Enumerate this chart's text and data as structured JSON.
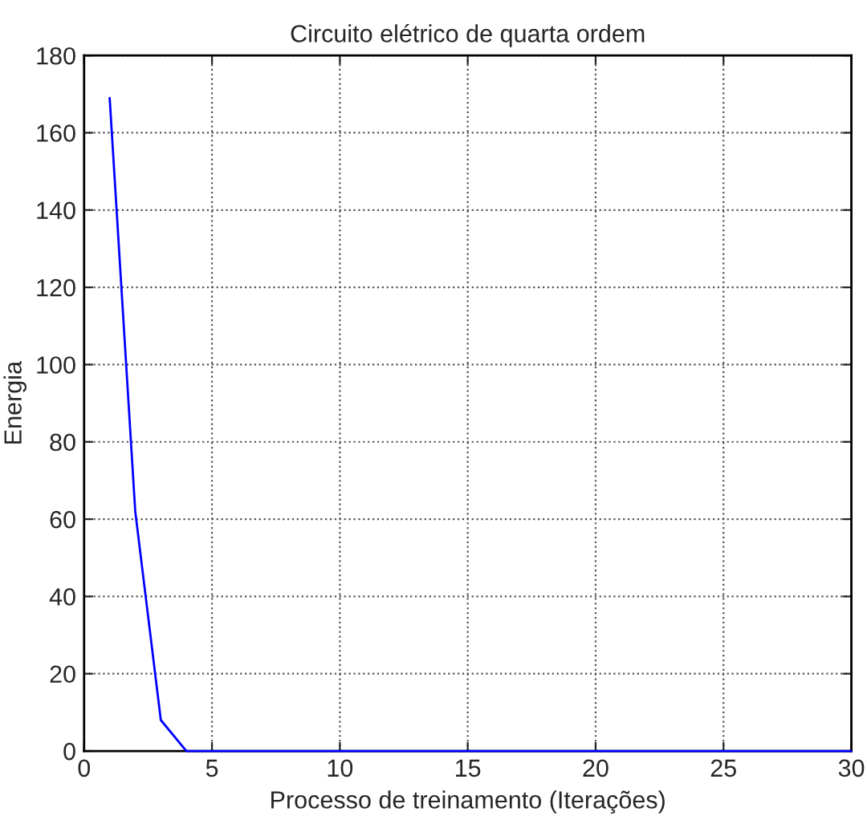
{
  "chart_data": {
    "type": "line",
    "title": "Circuito elétrico de quarta ordem",
    "xlabel": "Processo de treinamento (Iterações)",
    "ylabel": "Energia",
    "x": [
      1,
      2,
      3,
      4,
      5,
      6,
      7,
      8,
      9,
      10,
      11,
      12,
      13,
      14,
      15,
      16,
      17,
      18,
      19,
      20,
      21,
      22,
      23,
      24,
      25,
      26,
      27,
      28,
      29,
      30
    ],
    "series": [
      {
        "color": "#0000ff",
        "values": [
          169,
          62,
          8,
          0,
          0,
          0,
          0,
          0,
          0,
          0,
          0,
          0,
          0,
          0,
          0,
          0,
          0,
          0,
          0,
          0,
          0,
          0,
          0,
          0,
          0,
          0,
          0,
          0,
          0,
          0
        ]
      }
    ],
    "xlim": [
      0,
      30
    ],
    "xticks": [
      0,
      5,
      10,
      15,
      20,
      25,
      30
    ],
    "ylim": [
      0,
      180
    ],
    "yticks": [
      0,
      20,
      40,
      60,
      80,
      100,
      120,
      140,
      160,
      180
    ],
    "grid": true,
    "marker": "none",
    "line_style": "solid",
    "legend": false
  }
}
